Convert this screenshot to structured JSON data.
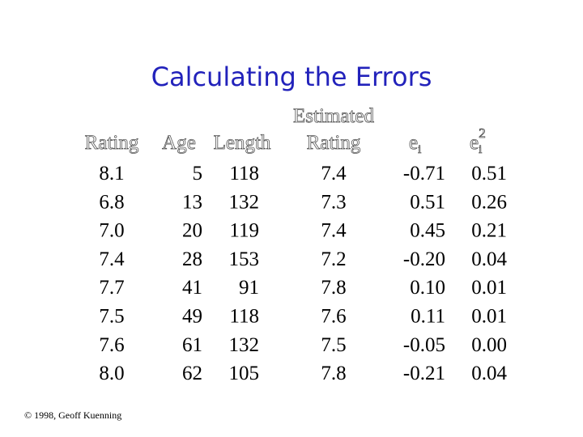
{
  "title": "Calculating the Errors",
  "table": {
    "headers": [
      {
        "lines": [
          "Rating"
        ]
      },
      {
        "lines": [
          "Age"
        ]
      },
      {
        "lines": [
          "Length"
        ]
      },
      {
        "lines": [
          "Estimated",
          "Rating"
        ]
      },
      {
        "base": "e",
        "sub": "i"
      },
      {
        "base": "e",
        "sub": "i",
        "sup": "2"
      }
    ],
    "rows": [
      [
        "8.1",
        "5",
        "118",
        "7.4",
        "-0.71",
        "0.51"
      ],
      [
        "6.8",
        "13",
        "132",
        "7.3",
        "0.51",
        "0.26"
      ],
      [
        "7.0",
        "20",
        "119",
        "7.4",
        "0.45",
        "0.21"
      ],
      [
        "7.4",
        "28",
        "153",
        "7.2",
        "-0.20",
        "0.04"
      ],
      [
        "7.7",
        "41",
        "91",
        "7.8",
        "0.10",
        "0.01"
      ],
      [
        "7.5",
        "49",
        "118",
        "7.6",
        "0.11",
        "0.01"
      ],
      [
        "7.6",
        "61",
        "132",
        "7.5",
        "-0.05",
        "0.00"
      ],
      [
        "8.0",
        "62",
        "105",
        "7.8",
        "-0.21",
        "0.04"
      ]
    ]
  },
  "footer": "© 1998, Geoff Kuenning"
}
